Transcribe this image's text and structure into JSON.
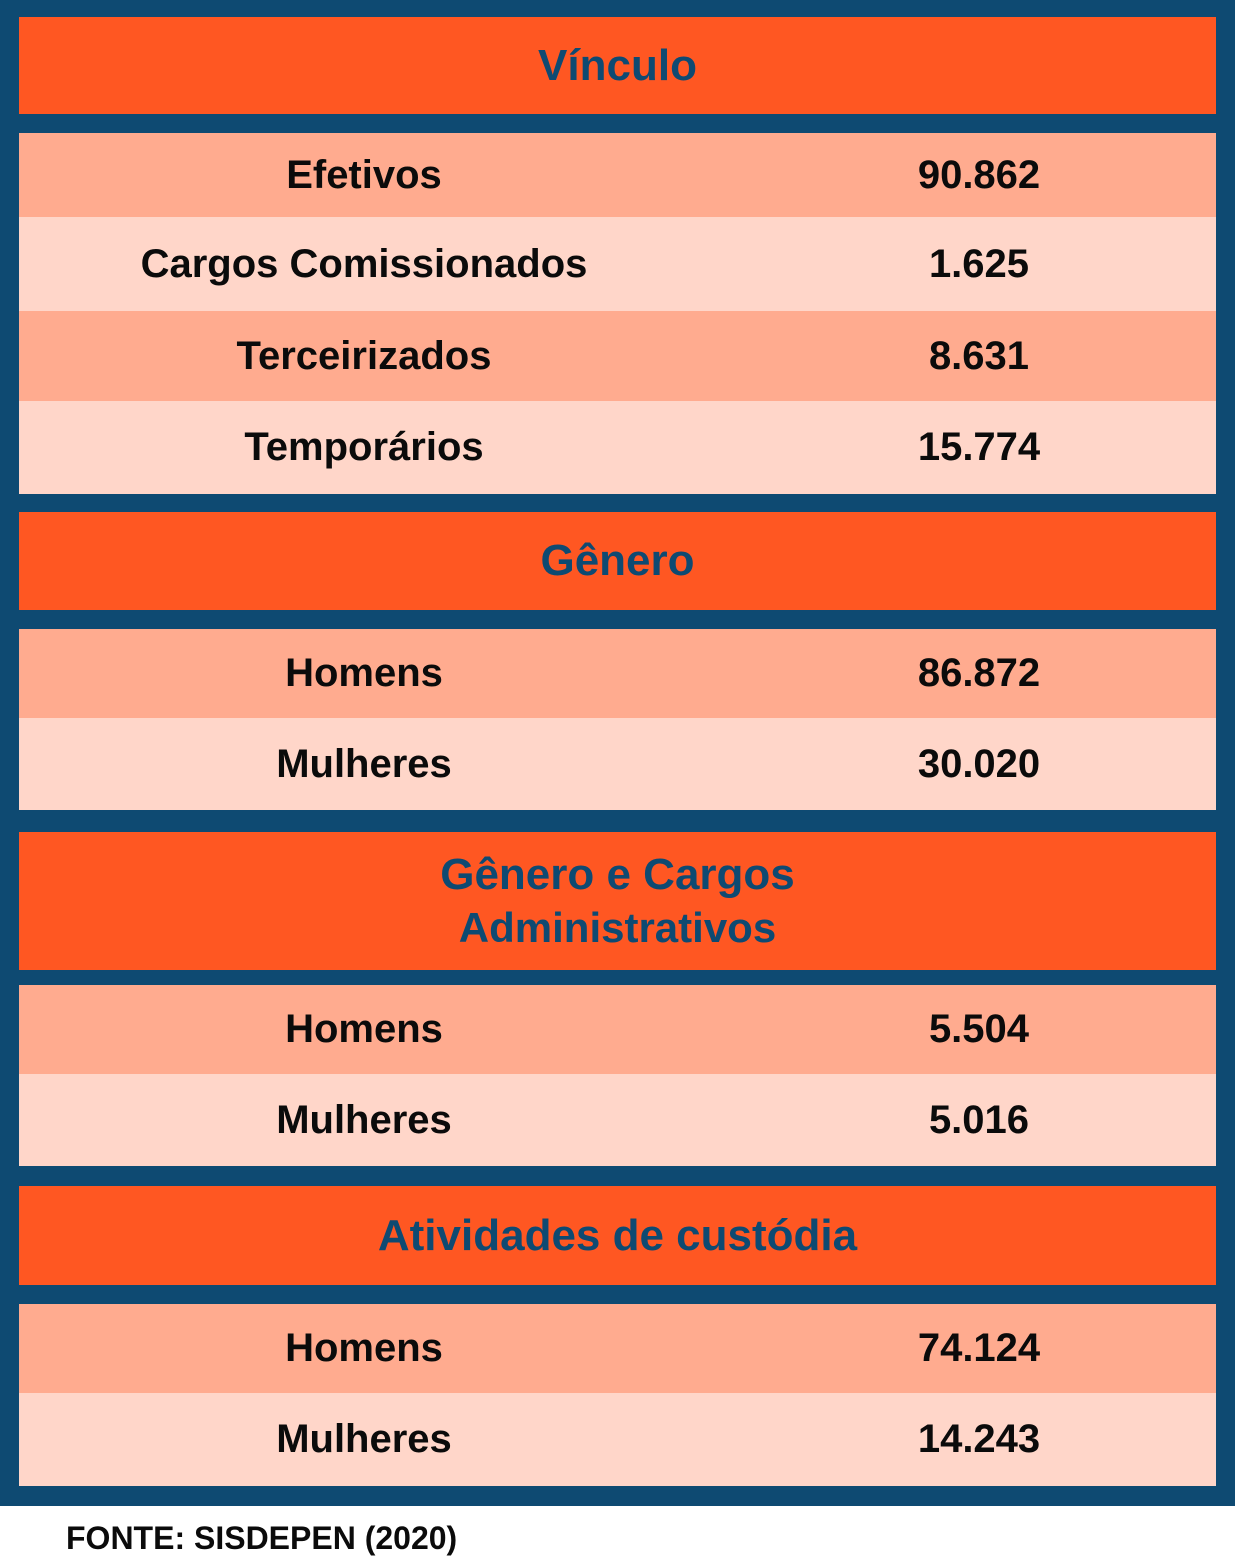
{
  "sections": [
    {
      "title": "Vínculo",
      "rows": [
        {
          "label": "Efetivos",
          "value": "90.862"
        },
        {
          "label": "Cargos Comissionados",
          "value": "1.625"
        },
        {
          "label": "Terceirizados",
          "value": "8.631"
        },
        {
          "label": "Temporários",
          "value": "15.774"
        }
      ]
    },
    {
      "title": "Gênero",
      "rows": [
        {
          "label": "Homens",
          "value": "86.872"
        },
        {
          "label": "Mulheres",
          "value": "30.020"
        }
      ]
    },
    {
      "title": "Gênero e Cargos",
      "title_line2": "Administrativos",
      "rows": [
        {
          "label": "Homens",
          "value": "5.504"
        },
        {
          "label": "Mulheres",
          "value": "5.016"
        }
      ]
    },
    {
      "title": "Atividades de custódia",
      "rows": [
        {
          "label": "Homens",
          "value": "74.124"
        },
        {
          "label": "Mulheres",
          "value": "14.243"
        }
      ]
    }
  ],
  "source": "FONTE: SISDEPEN (2020)",
  "colors": {
    "border": "#0e4a72",
    "header": "#ff5722",
    "row_dark": "#ffab8f",
    "row_light": "#ffd6c9"
  }
}
